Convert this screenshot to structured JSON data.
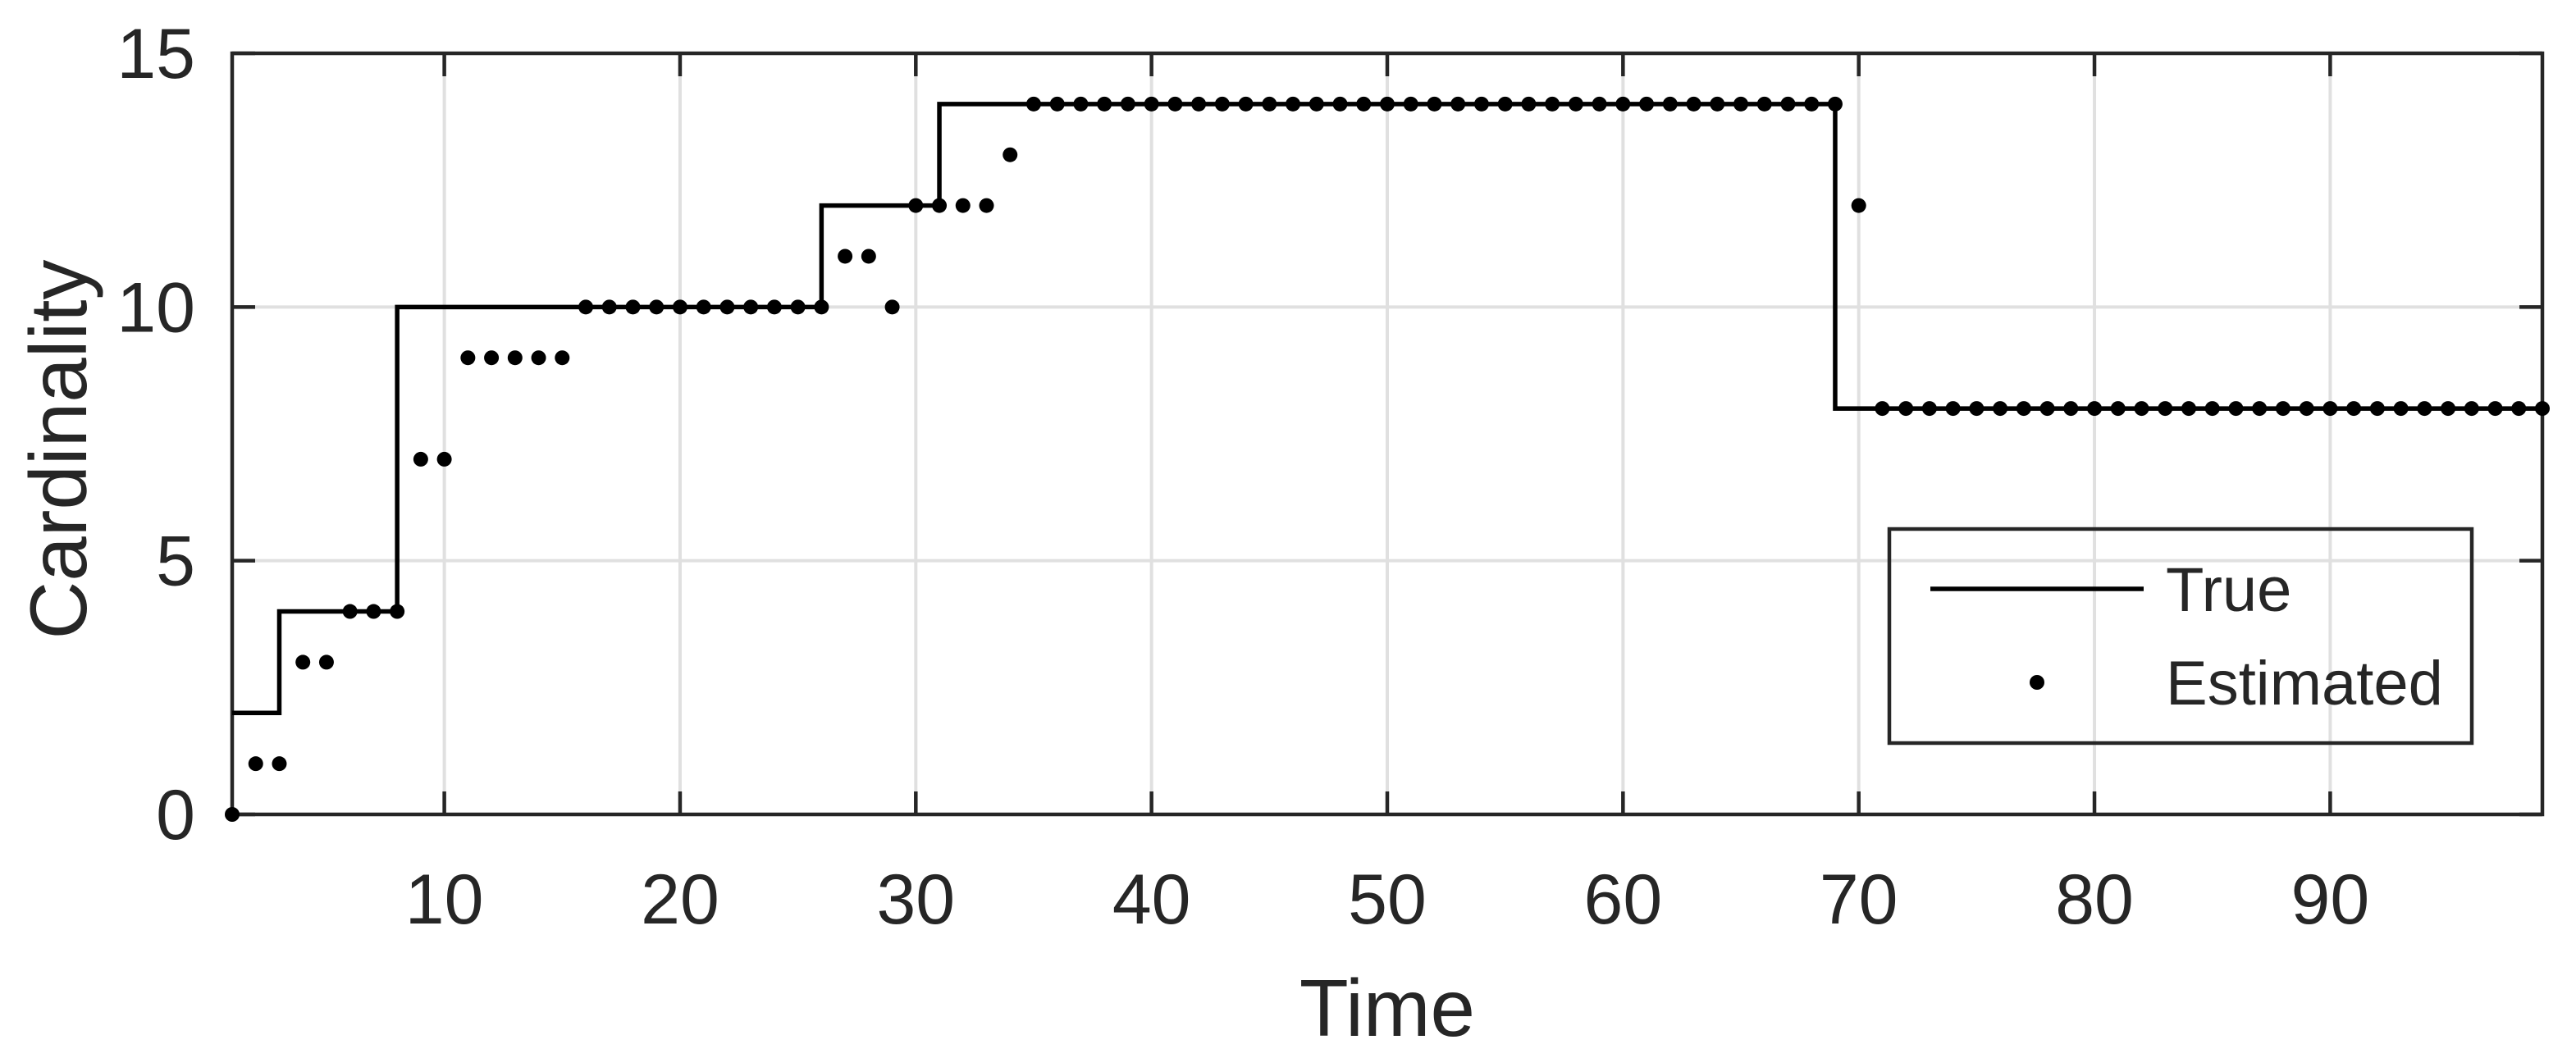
{
  "figure": {
    "background_color": "#ffffff"
  },
  "chart_data": {
    "type": "line",
    "title": "",
    "xlabel": "Time",
    "ylabel": "Cardinality",
    "xlim": [
      1,
      99
    ],
    "ylim": [
      0,
      15
    ],
    "xticks": [
      10,
      20,
      30,
      40,
      50,
      60,
      70,
      80,
      90
    ],
    "yticks": [
      0,
      5,
      10,
      15
    ],
    "grid": true,
    "box": true,
    "tick_direction": "in",
    "legend_position": "right-center-lower",
    "colors": {
      "data": "#000000",
      "axes": "#262626",
      "grid": "#e0e0e0",
      "background": "#ffffff",
      "legend_background": "#ffffff"
    },
    "series": [
      {
        "name": "True",
        "style": "stairs",
        "line_width": 5.5,
        "breakpoints": [
          {
            "x": 1,
            "y": 2
          },
          {
            "x": 3,
            "y": 4
          },
          {
            "x": 8,
            "y": 10
          },
          {
            "x": 26,
            "y": 12
          },
          {
            "x": 31,
            "y": 14
          },
          {
            "x": 69,
            "y": 8
          }
        ],
        "x_end": 99
      },
      {
        "name": "Estimated",
        "style": "scatter",
        "marker": "filled-circle",
        "marker_radius": 9,
        "x_start": 1,
        "x_step": 1,
        "values": [
          0,
          1,
          1,
          3,
          3,
          4,
          4,
          4,
          7,
          7,
          9,
          9,
          9,
          9,
          9,
          10,
          10,
          10,
          10,
          10,
          10,
          10,
          10,
          10,
          10,
          10,
          11,
          11,
          10,
          12,
          12,
          12,
          12,
          13,
          14,
          14,
          14,
          14,
          14,
          14,
          14,
          14,
          14,
          14,
          14,
          14,
          14,
          14,
          14,
          14,
          14,
          14,
          14,
          14,
          14,
          14,
          14,
          14,
          14,
          14,
          14,
          14,
          14,
          14,
          14,
          14,
          14,
          14,
          14,
          12,
          8,
          8,
          8,
          8,
          8,
          8,
          8,
          8,
          8,
          8,
          8,
          8,
          8,
          8,
          8,
          8,
          8,
          8,
          8,
          8,
          8,
          8,
          8,
          8,
          8,
          8,
          8,
          8,
          8
        ]
      }
    ]
  }
}
